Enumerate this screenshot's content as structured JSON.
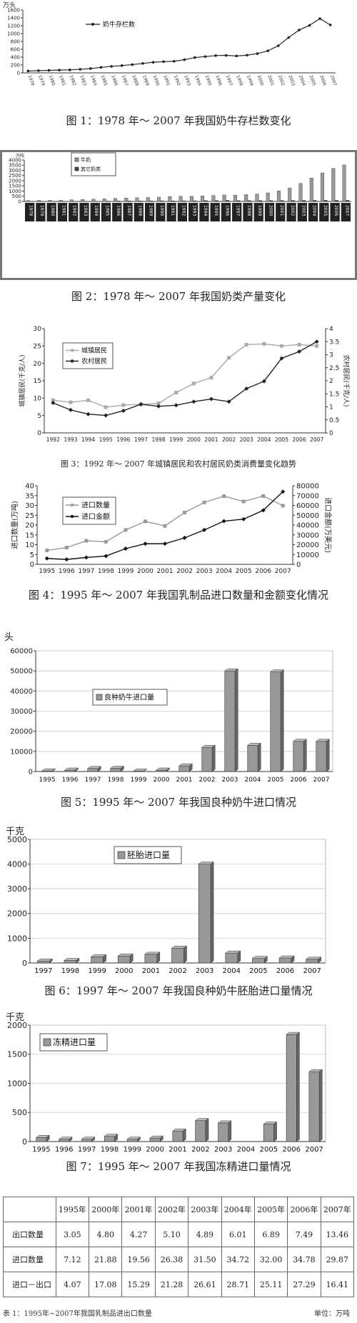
{
  "charts": [
    {
      "caption": "图 1：1978 年～ 2007 年我国奶牛存栏数变化"
    },
    {
      "caption": "图 2：1978 年～ 2007 年我国奶类产量变化"
    },
    {
      "caption": "图 3：1992 年～ 2007 年城镇居民和农村居民奶类消费量变化趋势"
    },
    {
      "caption": "图 4：1995 年～ 2007 年我国乳制品进口数量和金额变化情况"
    },
    {
      "caption": "图 5：1995 年～ 2007 年我国良种奶牛进口情况"
    },
    {
      "caption": "图 6：1997 年～ 2007 年我国良种奶牛胚胎进口量情况"
    },
    {
      "caption": "图 7：1995 年～ 2007 年我国冻精进口量情况"
    }
  ],
  "chart_data": [
    {
      "type": "line",
      "ylabel": "万头",
      "ylim": [
        0,
        1600
      ],
      "yticks": [
        0,
        200,
        400,
        600,
        800,
        1000,
        1200,
        1400,
        1600
      ],
      "xticks": [
        "1978",
        "1979",
        "1980",
        "1981",
        "1982",
        "1983",
        "1984",
        "1985",
        "1986",
        "1987",
        "1988",
        "1989",
        "1990",
        "1991",
        "1992",
        "1993",
        "1994",
        "1995",
        "1996",
        "1997",
        "1998",
        "1999",
        "2000",
        "2001",
        "2002",
        "2003",
        "2004",
        "2005",
        "2006",
        "2007"
      ],
      "series": [
        {
          "name": "奶牛存栏数",
          "color": "#222",
          "values": [
            48,
            56,
            64,
            70,
            76,
            90,
            110,
            140,
            165,
            185,
            210,
            240,
            270,
            285,
            295,
            335,
            390,
            415,
            440,
            445,
            430,
            450,
            490,
            560,
            690,
            900,
            1090,
            1210,
            1380,
            1220
          ]
        }
      ],
      "legend": "top-left",
      "grid": false
    },
    {
      "type": "bar",
      "ylabel": "万吨",
      "ylim": [
        0,
        4000
      ],
      "yticks": [
        0,
        500,
        1000,
        1500,
        2000,
        2500,
        3000,
        3500,
        4000
      ],
      "categories": [
        "1978",
        "1979",
        "1980",
        "1981",
        "1982",
        "1983",
        "1984",
        "1985",
        "1986",
        "1987",
        "1988",
        "1989",
        "1990",
        "1991",
        "1992",
        "1993",
        "1994",
        "1995",
        "1996",
        "1997",
        "1998",
        "1999",
        "2000",
        "2001",
        "2002",
        "2003",
        "2004",
        "2005",
        "2006",
        "2007"
      ],
      "series": [
        {
          "name": "牛奶",
          "color": "#999",
          "values": [
            88,
            107,
            114,
            129,
            162,
            185,
            219,
            250,
            289,
            330,
            366,
            381,
            415,
            465,
            503,
            499,
            529,
            577,
            629,
            601,
            663,
            718,
            827,
            1025,
            1300,
            1746,
            2261,
            2753,
            3193,
            3525
          ]
        },
        {
          "name": "其它奶类",
          "color": "#444",
          "values": [
            9,
            10,
            23,
            10,
            10,
            14,
            19,
            39,
            44,
            48,
            53,
            55,
            60,
            60,
            61,
            65,
            80,
            95,
            107,
            80,
            82,
            88,
            92,
            98,
            100,
            102,
            107,
            112,
            109,
            109
          ]
        }
      ],
      "legend": "top-left",
      "grid": false
    },
    {
      "type": "line",
      "ylabel": "城镇居民(千克/人)",
      "ylabel2": "农村居民(千克/人)",
      "ylim": [
        0,
        30
      ],
      "ylim2": [
        0,
        4
      ],
      "yticks": [
        0,
        5,
        10,
        15,
        20,
        25,
        30
      ],
      "yticks2": [
        "0",
        "0.5",
        "1",
        "1.5",
        "2",
        "2.5",
        "3",
        "3.5",
        "4"
      ],
      "categories": [
        "1992",
        "1993",
        "1994",
        "1995",
        "1996",
        "1997",
        "1998",
        "1999",
        "2000",
        "2001",
        "2002",
        "2003",
        "2004",
        "2005",
        "2006",
        "2007"
      ],
      "series": [
        {
          "name": "城镇居民",
          "axis": "left",
          "color": "#aaa",
          "marker": "square",
          "values": [
            9.4,
            8.8,
            9.4,
            7.4,
            8,
            8.2,
            8.5,
            11.6,
            14.2,
            15.9,
            21.6,
            25.4,
            25.6,
            25,
            25.4,
            25
          ]
        },
        {
          "name": "农村居民",
          "axis": "right",
          "color": "#222",
          "marker": "diamond",
          "values": [
            1.15,
            0.88,
            0.72,
            0.67,
            0.85,
            1.1,
            1.02,
            1.06,
            1.2,
            1.3,
            1.2,
            1.7,
            1.98,
            2.86,
            3.12,
            3.5
          ]
        }
      ],
      "legend": "top-left",
      "grid": false
    },
    {
      "type": "line",
      "ylabel": "进口数量(万吨)",
      "ylabel2": "进口金额(万美元)",
      "ylim": [
        0,
        40
      ],
      "ylim2": [
        0,
        80000
      ],
      "yticks": [
        0,
        5,
        10,
        15,
        20,
        25,
        30,
        35,
        40
      ],
      "yticks2": [
        0,
        10000,
        20000,
        30000,
        40000,
        50000,
        60000,
        70000,
        80000
      ],
      "categories": [
        "1995",
        "1996",
        "1997",
        "1998",
        "1999",
        "2000",
        "2001",
        "2002",
        "2003",
        "2004",
        "2005",
        "2006",
        "2007"
      ],
      "series": [
        {
          "name": "进口数量",
          "axis": "left",
          "color": "#999",
          "marker": "square",
          "values": [
            7.12,
            8.5,
            12,
            11.5,
            17.5,
            21.88,
            19.56,
            26.38,
            31.5,
            34.72,
            32,
            34.78,
            29.87
          ]
        },
        {
          "name": "进口金额",
          "axis": "right",
          "color": "#111",
          "marker": "diamond",
          "values": [
            6000,
            5000,
            7000,
            8500,
            16000,
            21000,
            21000,
            27000,
            35000,
            44000,
            46000,
            55000,
            74000
          ]
        }
      ],
      "legend": "top-left",
      "grid": false
    },
    {
      "type": "bar",
      "ylabel": "头",
      "ylim": [
        0,
        60000
      ],
      "yticks": [
        0,
        10000,
        20000,
        30000,
        40000,
        50000,
        60000
      ],
      "categories": [
        "1995",
        "1996",
        "1997",
        "1998",
        "1999",
        "2000",
        "2001",
        "2002",
        "2003",
        "2004",
        "2005",
        "2006",
        "2007"
      ],
      "series": [
        {
          "name": "良种奶牛进口量",
          "color": "#999",
          "values": [
            300,
            700,
            1500,
            1600,
            200,
            700,
            2800,
            12000,
            50000,
            13000,
            49500,
            15000,
            15000
          ]
        }
      ],
      "legend": "top-left",
      "grid": true
    },
    {
      "type": "bar",
      "ylabel": "千克",
      "ylim": [
        0,
        5000
      ],
      "yticks": [
        0,
        1000,
        2000,
        3000,
        4000,
        5000
      ],
      "categories": [
        "1997",
        "1998",
        "1999",
        "2000",
        "2001",
        "2002",
        "2003",
        "2004",
        "2005",
        "2006",
        "2007"
      ],
      "series": [
        {
          "name": "胚胎进口量",
          "color": "#999",
          "values": [
            80,
            100,
            250,
            280,
            350,
            600,
            4000,
            400,
            180,
            200,
            150
          ]
        }
      ],
      "legend": "top-left",
      "grid": true
    },
    {
      "type": "bar",
      "ylabel": "千克",
      "ylim": [
        0,
        2000
      ],
      "yticks": [
        0,
        500,
        1000,
        1500,
        2000
      ],
      "categories": [
        "1995",
        "1996",
        "1997",
        "1998",
        "1999",
        "2000",
        "2001",
        "2002",
        "2003",
        "2004",
        "2005",
        "2006",
        "2007"
      ],
      "series": [
        {
          "name": "冻精进口量",
          "color": "#999",
          "values": [
            70,
            40,
            40,
            90,
            40,
            60,
            180,
            360,
            320,
            0,
            300,
            1840,
            1200
          ]
        }
      ],
      "legend": "top-left",
      "grid": true
    }
  ],
  "table": {
    "columns": [
      "",
      "1995年",
      "2000年",
      "2001年",
      "2002年",
      "2003年",
      "2004年",
      "2005年",
      "2006年",
      "2007年"
    ],
    "rows": [
      {
        "label": "出口数量",
        "values": [
          "3.05",
          "4.80",
          "4.27",
          "5.10",
          "4.89",
          "6.01",
          "6.89",
          "7.49",
          "13.46"
        ]
      },
      {
        "label": "进口数量",
        "values": [
          "7.12",
          "21.88",
          "19.56",
          "26.38",
          "31.50",
          "34.72",
          "32.00",
          "34.78",
          "29.87"
        ]
      },
      {
        "label": "进口－出口",
        "values": [
          "4.07",
          "17.08",
          "15.29",
          "21.28",
          "26.61",
          "28.71",
          "25.11",
          "27.29",
          "16.41"
        ]
      }
    ],
    "caption": "表 1：1995年~2007年我国乳制品进出口数量",
    "unit": "单位：万吨"
  }
}
